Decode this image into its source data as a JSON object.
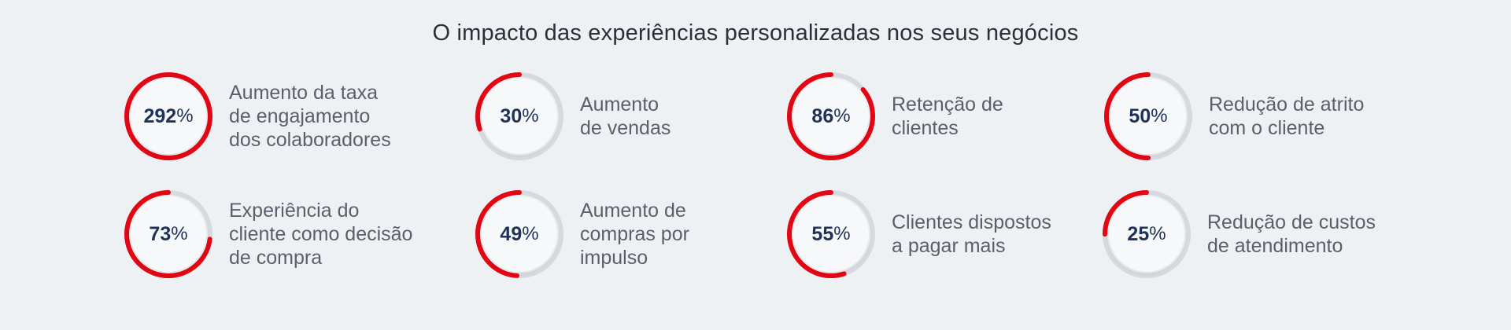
{
  "title": "O impacto das experiências personalizadas nos seus negócios",
  "ring_color": "#e30613",
  "track_color": "#d6d9de",
  "percent_sign": "%",
  "stats": [
    {
      "value": 292,
      "fill": 1.0,
      "label": "Aumento da taxa\nde engajamento\ndos colaboradores"
    },
    {
      "value": 30,
      "fill": 0.3,
      "label": "Aumento\nde vendas"
    },
    {
      "value": 86,
      "fill": 0.86,
      "label": "Retenção de\nclientes"
    },
    {
      "value": 50,
      "fill": 0.5,
      "label": "Redução de atrito\ncom o cliente"
    },
    {
      "value": 73,
      "fill": 0.73,
      "label": "Experiência do\ncliente como decisão\nde compra"
    },
    {
      "value": 49,
      "fill": 0.49,
      "label": "Aumento de\ncompras por\nimpulso"
    },
    {
      "value": 55,
      "fill": 0.55,
      "label": "Clientes dispostos\na pagar mais"
    },
    {
      "value": 25,
      "fill": 0.25,
      "label": "Redução de custos\nde atendimento"
    }
  ]
}
